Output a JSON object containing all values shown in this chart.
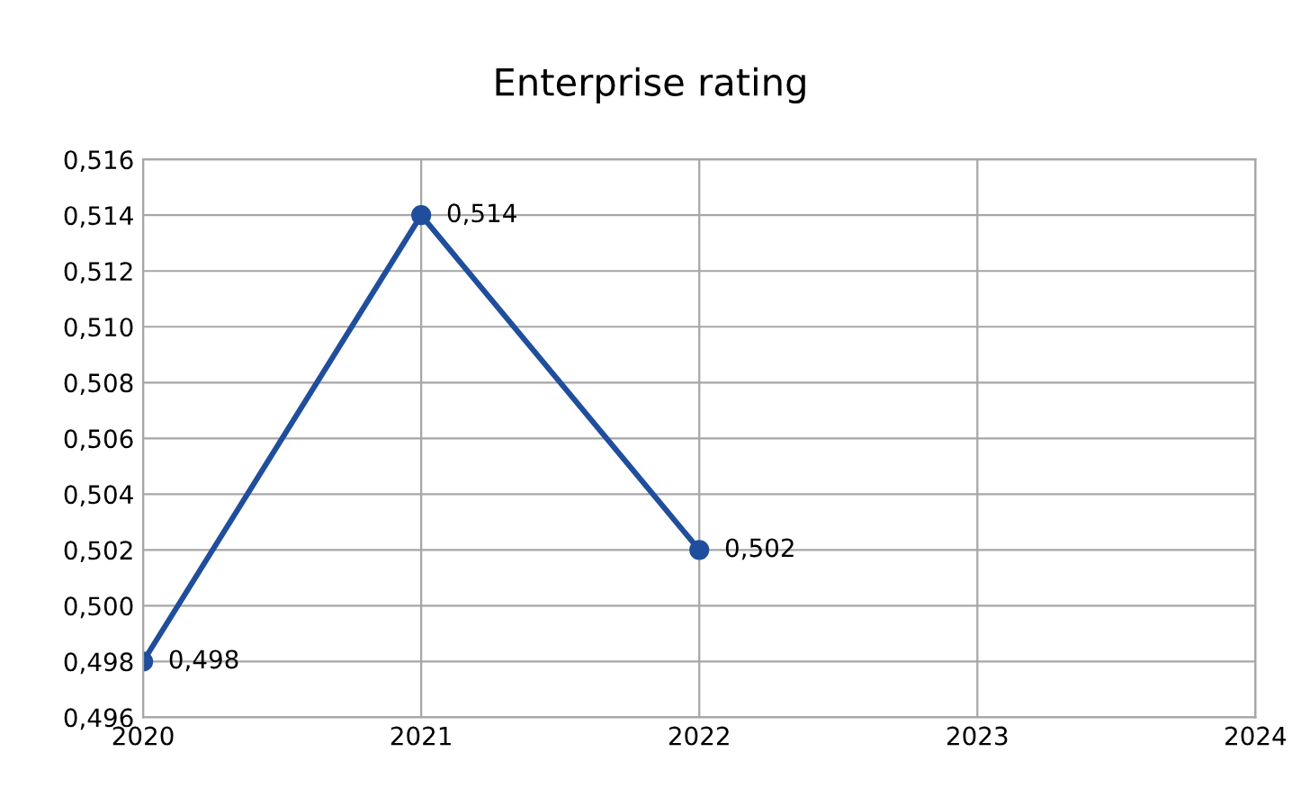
{
  "chart_data": {
    "type": "line",
    "title": "Enterprise rating",
    "x": [
      2020,
      2021,
      2022
    ],
    "series": [
      {
        "color": "#1f4e9c",
        "values": [
          0.498,
          0.514,
          0.502
        ],
        "value_labels": [
          "0,498",
          "0,514",
          "0,502"
        ]
      }
    ],
    "xlim": [
      2020,
      2024
    ],
    "xticks": [
      2020,
      2021,
      2022,
      2023,
      2024
    ],
    "ylim": [
      0.496,
      0.516
    ],
    "yticks": [
      {
        "value": 0.496,
        "label": "0,496"
      },
      {
        "value": 0.498,
        "label": "0,498"
      },
      {
        "value": 0.5,
        "label": "0,500"
      },
      {
        "value": 0.502,
        "label": "0,502"
      },
      {
        "value": 0.504,
        "label": "0,504"
      },
      {
        "value": 0.506,
        "label": "0,506"
      },
      {
        "value": 0.508,
        "label": "0,508"
      },
      {
        "value": 0.51,
        "label": "0,510"
      },
      {
        "value": 0.512,
        "label": "0,512"
      },
      {
        "value": 0.514,
        "label": "0,514"
      },
      {
        "value": 0.516,
        "label": "0,516"
      }
    ],
    "grid": true,
    "marker": "circle",
    "line_style": "solid"
  }
}
